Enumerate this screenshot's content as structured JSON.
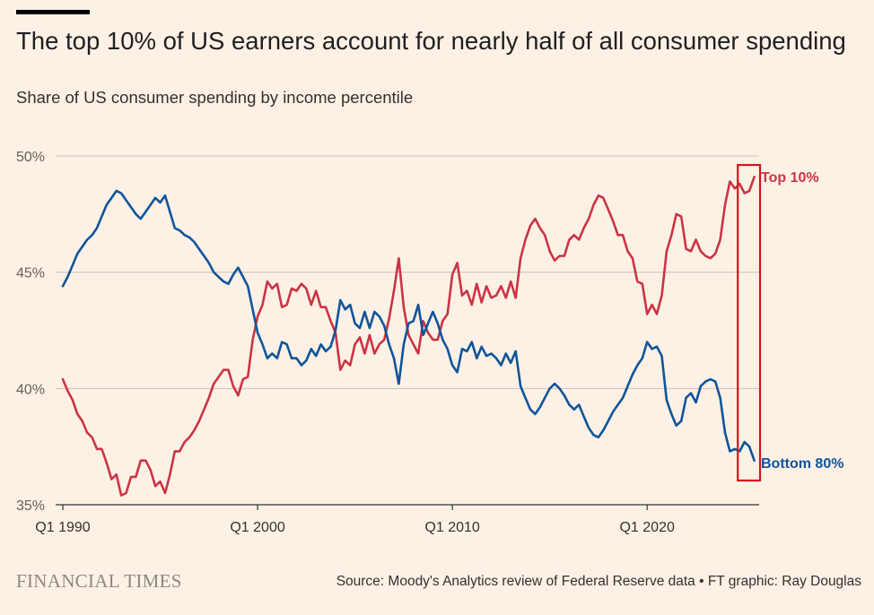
{
  "header": {
    "title": "The top 10% of US earners account for nearly half of all consumer spending",
    "subtitle": "Share of US consumer spending by income percentile"
  },
  "footer": {
    "brand": "FINANCIAL TIMES",
    "source": "Source: Moody's Analytics review of Federal Reserve data • FT graphic: Ray Douglas"
  },
  "chart_data": {
    "type": "line",
    "title": "The top 10% of US earners account for nearly half of all consumer spending",
    "subtitle": "Share of US consumer spending by income percentile",
    "x_tick_labels": [
      "Q1 1990",
      "Q1 2000",
      "Q1 2010",
      "Q1 2020"
    ],
    "y_tick_labels": [
      "35%",
      "40%",
      "45%",
      "50%"
    ],
    "x_tick_values": [
      1990,
      2000,
      2010,
      2020
    ],
    "y_tick_values": [
      35,
      40,
      45,
      50
    ],
    "xlim": [
      1990,
      2025.75
    ],
    "ylim": [
      35,
      50
    ],
    "grid": true,
    "highlight": {
      "x_from": 2024.7,
      "x_to": 2025.75,
      "color": "#d7141e"
    },
    "series": [
      {
        "name": "Top 10%",
        "color": "#cc3344",
        "points": [
          [
            1990,
            40.4
          ],
          [
            1990.25,
            39.9
          ],
          [
            1990.5,
            39.5
          ],
          [
            1990.75,
            38.9
          ],
          [
            1991,
            38.6
          ],
          [
            1991.25,
            38.1
          ],
          [
            1991.5,
            37.9
          ],
          [
            1991.75,
            37.4
          ],
          [
            1992,
            37.4
          ],
          [
            1992.25,
            36.8
          ],
          [
            1992.5,
            36.1
          ],
          [
            1992.75,
            36.3
          ],
          [
            1993,
            35.4
          ],
          [
            1993.25,
            35.5
          ],
          [
            1993.5,
            36.2
          ],
          [
            1993.75,
            36.2
          ],
          [
            1994,
            36.9
          ],
          [
            1994.25,
            36.9
          ],
          [
            1994.5,
            36.5
          ],
          [
            1994.75,
            35.8
          ],
          [
            1995,
            36.0
          ],
          [
            1995.25,
            35.5
          ],
          [
            1995.5,
            36.3
          ],
          [
            1995.75,
            37.3
          ],
          [
            1996,
            37.3
          ],
          [
            1996.25,
            37.7
          ],
          [
            1996.5,
            37.9
          ],
          [
            1996.75,
            38.2
          ],
          [
            1997,
            38.6
          ],
          [
            1997.25,
            39.1
          ],
          [
            1997.5,
            39.6
          ],
          [
            1997.75,
            40.2
          ],
          [
            1998,
            40.5
          ],
          [
            1998.25,
            40.8
          ],
          [
            1998.5,
            40.8
          ],
          [
            1998.75,
            40.1
          ],
          [
            1999,
            39.7
          ],
          [
            1999.25,
            40.4
          ],
          [
            1999.5,
            40.5
          ],
          [
            1999.75,
            42.1
          ],
          [
            2000,
            43.1
          ],
          [
            2000.25,
            43.6
          ],
          [
            2000.5,
            44.6
          ],
          [
            2000.75,
            44.3
          ],
          [
            2001,
            44.5
          ],
          [
            2001.25,
            43.5
          ],
          [
            2001.5,
            43.6
          ],
          [
            2001.75,
            44.3
          ],
          [
            2002,
            44.2
          ],
          [
            2002.25,
            44.5
          ],
          [
            2002.5,
            44.3
          ],
          [
            2002.75,
            43.6
          ],
          [
            2003,
            44.2
          ],
          [
            2003.25,
            43.5
          ],
          [
            2003.5,
            43.5
          ],
          [
            2003.75,
            42.9
          ],
          [
            2004,
            42.4
          ],
          [
            2004.25,
            40.8
          ],
          [
            2004.5,
            41.2
          ],
          [
            2004.75,
            41.0
          ],
          [
            2005,
            41.9
          ],
          [
            2005.25,
            42.2
          ],
          [
            2005.5,
            41.5
          ],
          [
            2005.75,
            42.3
          ],
          [
            2006,
            41.5
          ],
          [
            2006.25,
            41.9
          ],
          [
            2006.5,
            42.1
          ],
          [
            2006.75,
            43.0
          ],
          [
            2007,
            44.2
          ],
          [
            2007.25,
            45.6
          ],
          [
            2007.5,
            43.5
          ],
          [
            2007.75,
            42.3
          ],
          [
            2008,
            41.9
          ],
          [
            2008.25,
            41.5
          ],
          [
            2008.5,
            42.9
          ],
          [
            2008.75,
            42.4
          ],
          [
            2009,
            42.1
          ],
          [
            2009.25,
            42.1
          ],
          [
            2009.5,
            42.9
          ],
          [
            2009.75,
            43.2
          ],
          [
            2010,
            44.9
          ],
          [
            2010.25,
            45.4
          ],
          [
            2010.5,
            44.0
          ],
          [
            2010.75,
            44.2
          ],
          [
            2011,
            43.6
          ],
          [
            2011.25,
            44.5
          ],
          [
            2011.5,
            43.7
          ],
          [
            2011.75,
            44.4
          ],
          [
            2012,
            43.9
          ],
          [
            2012.25,
            44.0
          ],
          [
            2012.5,
            44.4
          ],
          [
            2012.75,
            43.9
          ],
          [
            2013,
            44.6
          ],
          [
            2013.25,
            43.9
          ],
          [
            2013.5,
            45.6
          ],
          [
            2013.75,
            46.4
          ],
          [
            2014,
            47.0
          ],
          [
            2014.25,
            47.3
          ],
          [
            2014.5,
            46.9
          ],
          [
            2014.75,
            46.6
          ],
          [
            2015,
            45.9
          ],
          [
            2015.25,
            45.5
          ],
          [
            2015.5,
            45.7
          ],
          [
            2015.75,
            45.7
          ],
          [
            2016,
            46.4
          ],
          [
            2016.25,
            46.6
          ],
          [
            2016.5,
            46.4
          ],
          [
            2016.75,
            46.9
          ],
          [
            2017,
            47.3
          ],
          [
            2017.25,
            47.9
          ],
          [
            2017.5,
            48.3
          ],
          [
            2017.75,
            48.2
          ],
          [
            2018,
            47.7
          ],
          [
            2018.25,
            47.2
          ],
          [
            2018.5,
            46.6
          ],
          [
            2018.75,
            46.6
          ],
          [
            2019,
            45.9
          ],
          [
            2019.25,
            45.6
          ],
          [
            2019.5,
            44.6
          ],
          [
            2019.75,
            44.5
          ],
          [
            2020,
            43.2
          ],
          [
            2020.25,
            43.6
          ],
          [
            2020.5,
            43.2
          ],
          [
            2020.75,
            44.0
          ],
          [
            2021,
            45.9
          ],
          [
            2021.25,
            46.6
          ],
          [
            2021.5,
            47.5
          ],
          [
            2021.75,
            47.4
          ],
          [
            2022,
            46.0
          ],
          [
            2022.25,
            45.9
          ],
          [
            2022.5,
            46.4
          ],
          [
            2022.75,
            45.9
          ],
          [
            2023,
            45.7
          ],
          [
            2023.25,
            45.6
          ],
          [
            2023.5,
            45.8
          ],
          [
            2023.75,
            46.4
          ],
          [
            2024,
            47.9
          ],
          [
            2024.25,
            48.9
          ],
          [
            2024.5,
            48.6
          ],
          [
            2024.75,
            48.8
          ],
          [
            2025,
            48.4
          ],
          [
            2025.25,
            48.5
          ],
          [
            2025.5,
            49.1
          ]
        ]
      },
      {
        "name": "Bottom 80%",
        "color": "#0f5499",
        "points": [
          [
            1990,
            44.4
          ],
          [
            1990.25,
            44.8
          ],
          [
            1990.5,
            45.3
          ],
          [
            1990.75,
            45.8
          ],
          [
            1991,
            46.1
          ],
          [
            1991.25,
            46.4
          ],
          [
            1991.5,
            46.6
          ],
          [
            1991.75,
            46.9
          ],
          [
            1992,
            47.4
          ],
          [
            1992.25,
            47.9
          ],
          [
            1992.5,
            48.2
          ],
          [
            1992.75,
            48.5
          ],
          [
            1993,
            48.4
          ],
          [
            1993.25,
            48.1
          ],
          [
            1993.5,
            47.8
          ],
          [
            1993.75,
            47.5
          ],
          [
            1994,
            47.3
          ],
          [
            1994.25,
            47.6
          ],
          [
            1994.5,
            47.9
          ],
          [
            1994.75,
            48.2
          ],
          [
            1995,
            48.0
          ],
          [
            1995.25,
            48.3
          ],
          [
            1995.5,
            47.6
          ],
          [
            1995.75,
            46.9
          ],
          [
            1996,
            46.8
          ],
          [
            1996.25,
            46.6
          ],
          [
            1996.5,
            46.5
          ],
          [
            1996.75,
            46.3
          ],
          [
            1997,
            46.0
          ],
          [
            1997.25,
            45.7
          ],
          [
            1997.5,
            45.4
          ],
          [
            1997.75,
            45.0
          ],
          [
            1998,
            44.8
          ],
          [
            1998.25,
            44.6
          ],
          [
            1998.5,
            44.5
          ],
          [
            1998.75,
            44.9
          ],
          [
            1999,
            45.2
          ],
          [
            1999.25,
            44.8
          ],
          [
            1999.5,
            44.4
          ],
          [
            1999.75,
            43.4
          ],
          [
            2000,
            42.4
          ],
          [
            2000.25,
            41.9
          ],
          [
            2000.5,
            41.3
          ],
          [
            2000.75,
            41.5
          ],
          [
            2001,
            41.3
          ],
          [
            2001.25,
            42.0
          ],
          [
            2001.5,
            41.9
          ],
          [
            2001.75,
            41.3
          ],
          [
            2002,
            41.3
          ],
          [
            2002.25,
            41.0
          ],
          [
            2002.5,
            41.2
          ],
          [
            2002.75,
            41.7
          ],
          [
            2003,
            41.4
          ],
          [
            2003.25,
            41.9
          ],
          [
            2003.5,
            41.6
          ],
          [
            2003.75,
            41.8
          ],
          [
            2004,
            42.5
          ],
          [
            2004.25,
            43.8
          ],
          [
            2004.5,
            43.4
          ],
          [
            2004.75,
            43.6
          ],
          [
            2005,
            42.8
          ],
          [
            2005.25,
            42.6
          ],
          [
            2005.5,
            43.3
          ],
          [
            2005.75,
            42.6
          ],
          [
            2006,
            43.3
          ],
          [
            2006.25,
            43.1
          ],
          [
            2006.5,
            42.7
          ],
          [
            2006.75,
            41.9
          ],
          [
            2007,
            41.3
          ],
          [
            2007.25,
            40.2
          ],
          [
            2007.5,
            41.9
          ],
          [
            2007.75,
            42.8
          ],
          [
            2008,
            42.9
          ],
          [
            2008.25,
            43.6
          ],
          [
            2008.5,
            42.3
          ],
          [
            2008.75,
            42.8
          ],
          [
            2009,
            43.3
          ],
          [
            2009.25,
            42.8
          ],
          [
            2009.5,
            42.1
          ],
          [
            2009.75,
            41.7
          ],
          [
            2010,
            41.0
          ],
          [
            2010.25,
            40.7
          ],
          [
            2010.5,
            41.7
          ],
          [
            2010.75,
            41.6
          ],
          [
            2011,
            42.0
          ],
          [
            2011.25,
            41.3
          ],
          [
            2011.5,
            41.8
          ],
          [
            2011.75,
            41.4
          ],
          [
            2012,
            41.5
          ],
          [
            2012.25,
            41.3
          ],
          [
            2012.5,
            41.0
          ],
          [
            2012.75,
            41.5
          ],
          [
            2013,
            41.1
          ],
          [
            2013.25,
            41.6
          ],
          [
            2013.5,
            40.1
          ],
          [
            2013.75,
            39.6
          ],
          [
            2014,
            39.1
          ],
          [
            2014.25,
            38.9
          ],
          [
            2014.5,
            39.2
          ],
          [
            2014.75,
            39.6
          ],
          [
            2015,
            40.0
          ],
          [
            2015.25,
            40.2
          ],
          [
            2015.5,
            40.0
          ],
          [
            2015.75,
            39.7
          ],
          [
            2016,
            39.3
          ],
          [
            2016.25,
            39.1
          ],
          [
            2016.5,
            39.3
          ],
          [
            2016.75,
            38.8
          ],
          [
            2017,
            38.3
          ],
          [
            2017.25,
            38.0
          ],
          [
            2017.5,
            37.9
          ],
          [
            2017.75,
            38.2
          ],
          [
            2018,
            38.6
          ],
          [
            2018.25,
            39.0
          ],
          [
            2018.5,
            39.3
          ],
          [
            2018.75,
            39.6
          ],
          [
            2019,
            40.1
          ],
          [
            2019.25,
            40.6
          ],
          [
            2019.5,
            41.0
          ],
          [
            2019.75,
            41.3
          ],
          [
            2020,
            42.0
          ],
          [
            2020.25,
            41.7
          ],
          [
            2020.5,
            41.8
          ],
          [
            2020.75,
            41.4
          ],
          [
            2021,
            39.5
          ],
          [
            2021.25,
            38.9
          ],
          [
            2021.5,
            38.4
          ],
          [
            2021.75,
            38.6
          ],
          [
            2022,
            39.6
          ],
          [
            2022.25,
            39.8
          ],
          [
            2022.5,
            39.4
          ],
          [
            2022.75,
            40.1
          ],
          [
            2023,
            40.3
          ],
          [
            2023.25,
            40.4
          ],
          [
            2023.5,
            40.3
          ],
          [
            2023.75,
            39.6
          ],
          [
            2024,
            38.1
          ],
          [
            2024.25,
            37.3
          ],
          [
            2024.5,
            37.4
          ],
          [
            2024.75,
            37.3
          ],
          [
            2025,
            37.7
          ],
          [
            2025.25,
            37.5
          ],
          [
            2025.5,
            36.9
          ]
        ]
      }
    ]
  }
}
